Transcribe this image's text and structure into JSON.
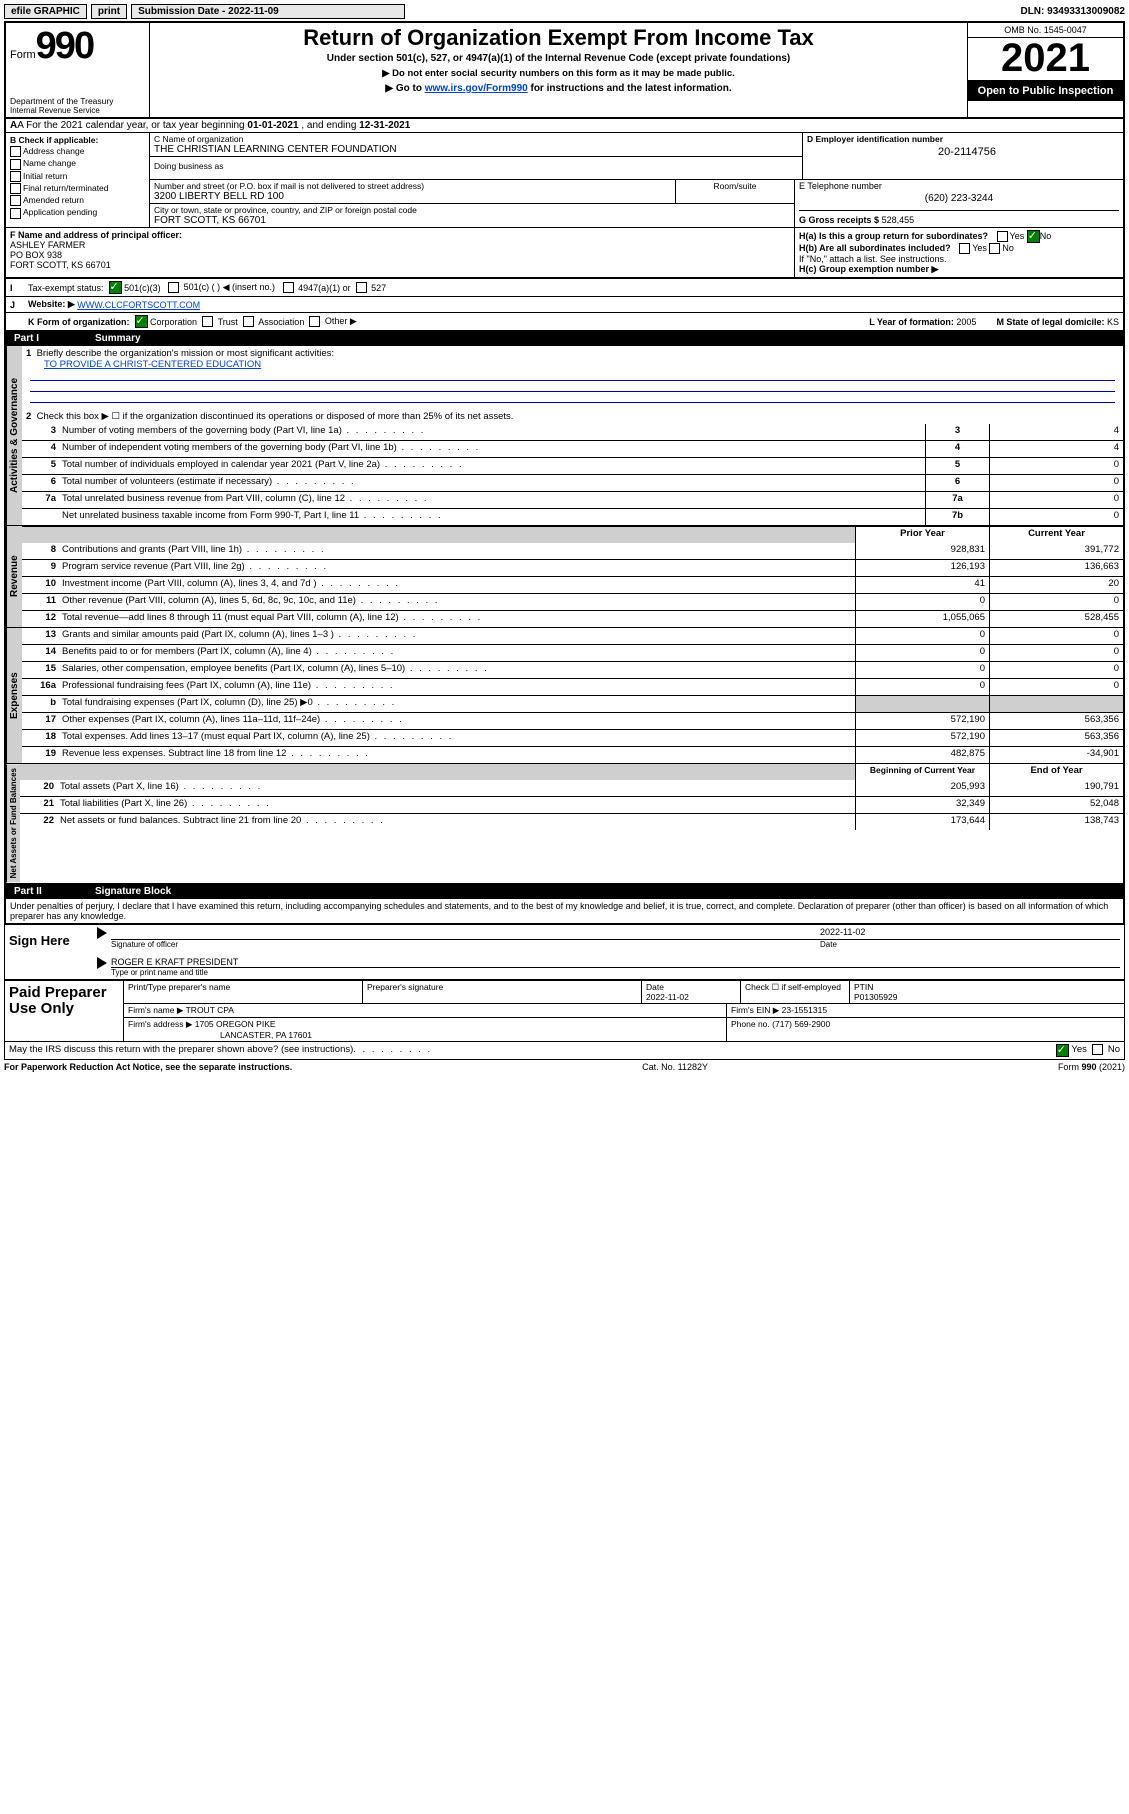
{
  "topbar": {
    "efile": "efile GRAPHIC",
    "print": "print",
    "sub_label": "Submission Date - 2022-11-09",
    "dln": "DLN: 93493313009082"
  },
  "header": {
    "form": "Form",
    "num": "990",
    "dept": "Department of the Treasury",
    "irs": "Internal Revenue Service",
    "title": "Return of Organization Exempt From Income Tax",
    "sub1": "Under section 501(c), 527, or 4947(a)(1) of the Internal Revenue Code (except private foundations)",
    "sub2": "▶ Do not enter social security numbers on this form as it may be made public.",
    "sub3_pre": "▶ Go to ",
    "sub3_link": "www.irs.gov/Form990",
    "sub3_post": " for instructions and the latest information.",
    "omb": "OMB No. 1545-0047",
    "year": "2021",
    "open": "Open to Public Inspection"
  },
  "rowA": {
    "pre": "A For the 2021 calendar year, or tax year beginning ",
    "begin": "01-01-2021",
    "mid": " , and ending ",
    "end": "12-31-2021"
  },
  "B": {
    "title": "B Check if applicable:",
    "opts": [
      "Address change",
      "Name change",
      "Initial return",
      "Final return/terminated",
      "Amended return",
      "Application pending"
    ]
  },
  "C": {
    "name_lbl": "C Name of organization",
    "name": "THE CHRISTIAN LEARNING CENTER FOUNDATION",
    "dba_lbl": "Doing business as",
    "addr_lbl": "Number and street (or P.O. box if mail is not delivered to street address)",
    "room_lbl": "Room/suite",
    "addr": "3200 LIBERTY BELL RD 100",
    "city_lbl": "City or town, state or province, country, and ZIP or foreign postal code",
    "city": "FORT SCOTT, KS  66701"
  },
  "D": {
    "lbl": "D Employer identification number",
    "val": "20-2114756"
  },
  "E": {
    "lbl": "E Telephone number",
    "val": "(620) 223-3244"
  },
  "G": {
    "lbl": "G Gross receipts $",
    "val": "528,455"
  },
  "F": {
    "lbl": "F  Name and address of principal officer:",
    "l1": "ASHLEY FARMER",
    "l2": "PO BOX 938",
    "l3": "FORT SCOTT, KS  66701"
  },
  "H": {
    "a": "H(a)  Is this a group return for subordinates?",
    "b": "H(b)  Are all subordinates included?",
    "note": "If \"No,\" attach a list. See instructions.",
    "c": "H(c)  Group exemption number ▶"
  },
  "I": {
    "lbl": "Tax-exempt status:",
    "o1": "501(c)(3)",
    "o2": "501(c) (  ) ◀ (insert no.)",
    "o3": "4947(a)(1) or",
    "o4": "527"
  },
  "J": {
    "lbl": "Website: ▶",
    "val": "WWW.CLCFORTSCOTT.COM"
  },
  "K": {
    "lbl": "K Form of organization:",
    "o1": "Corporation",
    "o2": "Trust",
    "o3": "Association",
    "o4": "Other ▶"
  },
  "L": {
    "lbl": "L Year of formation:",
    "val": "2005"
  },
  "M": {
    "lbl": "M State of legal domicile:",
    "val": "KS"
  },
  "partI": {
    "num": "Part I",
    "title": "Summary"
  },
  "summary": {
    "l1": "Briefly describe the organization's mission or most significant activities:",
    "mission": "TO PROVIDE A CHRIST-CENTERED EDUCATION",
    "l2": "Check this box ▶ ☐  if the organization discontinued its operations or disposed of more than 25% of its net assets.",
    "rows": [
      {
        "n": "3",
        "t": "Number of voting members of the governing body (Part VI, line 1a)",
        "bn": "3",
        "v": "4"
      },
      {
        "n": "4",
        "t": "Number of independent voting members of the governing body (Part VI, line 1b)",
        "bn": "4",
        "v": "4"
      },
      {
        "n": "5",
        "t": "Total number of individuals employed in calendar year 2021 (Part V, line 2a)",
        "bn": "5",
        "v": "0"
      },
      {
        "n": "6",
        "t": "Total number of volunteers (estimate if necessary)",
        "bn": "6",
        "v": "0"
      },
      {
        "n": "7a",
        "t": "Total unrelated business revenue from Part VIII, column (C), line 12",
        "bn": "7a",
        "v": "0"
      },
      {
        "n": "",
        "t": "Net unrelated business taxable income from Form 990-T, Part I, line 11",
        "bn": "7b",
        "v": "0"
      }
    ],
    "hdr_prior": "Prior Year",
    "hdr_curr": "Current Year",
    "rev": [
      {
        "n": "8",
        "t": "Contributions and grants (Part VIII, line 1h)",
        "p": "928,831",
        "c": "391,772"
      },
      {
        "n": "9",
        "t": "Program service revenue (Part VIII, line 2g)",
        "p": "126,193",
        "c": "136,663"
      },
      {
        "n": "10",
        "t": "Investment income (Part VIII, column (A), lines 3, 4, and 7d )",
        "p": "41",
        "c": "20"
      },
      {
        "n": "11",
        "t": "Other revenue (Part VIII, column (A), lines 5, 6d, 8c, 9c, 10c, and 11e)",
        "p": "0",
        "c": "0"
      },
      {
        "n": "12",
        "t": "Total revenue—add lines 8 through 11 (must equal Part VIII, column (A), line 12)",
        "p": "1,055,065",
        "c": "528,455"
      }
    ],
    "exp": [
      {
        "n": "13",
        "t": "Grants and similar amounts paid (Part IX, column (A), lines 1–3 )",
        "p": "0",
        "c": "0"
      },
      {
        "n": "14",
        "t": "Benefits paid to or for members (Part IX, column (A), line 4)",
        "p": "0",
        "c": "0"
      },
      {
        "n": "15",
        "t": "Salaries, other compensation, employee benefits (Part IX, column (A), lines 5–10)",
        "p": "0",
        "c": "0"
      },
      {
        "n": "16a",
        "t": "Professional fundraising fees (Part IX, column (A), line 11e)",
        "p": "0",
        "c": "0"
      },
      {
        "n": "b",
        "t": "Total fundraising expenses (Part IX, column (D), line 25) ▶0",
        "p": "",
        "c": "",
        "shade": true
      },
      {
        "n": "17",
        "t": "Other expenses (Part IX, column (A), lines 11a–11d, 11f–24e)",
        "p": "572,190",
        "c": "563,356"
      },
      {
        "n": "18",
        "t": "Total expenses. Add lines 13–17 (must equal Part IX, column (A), line 25)",
        "p": "572,190",
        "c": "563,356"
      },
      {
        "n": "19",
        "t": "Revenue less expenses. Subtract line 18 from line 12",
        "p": "482,875",
        "c": "-34,901"
      }
    ],
    "hdr_beg": "Beginning of Current Year",
    "hdr_end": "End of Year",
    "bal": [
      {
        "n": "20",
        "t": "Total assets (Part X, line 16)",
        "p": "205,993",
        "c": "190,791"
      },
      {
        "n": "21",
        "t": "Total liabilities (Part X, line 26)",
        "p": "32,349",
        "c": "52,048"
      },
      {
        "n": "22",
        "t": "Net assets or fund balances. Subtract line 21 from line 20",
        "p": "173,644",
        "c": "138,743"
      }
    ]
  },
  "tabs": {
    "gov": "Activities & Governance",
    "rev": "Revenue",
    "exp": "Expenses",
    "bal": "Net Assets or Fund Balances"
  },
  "partII": {
    "num": "Part II",
    "title": "Signature Block"
  },
  "sig": {
    "decl": "Under penalties of perjury, I declare that I have examined this return, including accompanying schedules and statements, and to the best of my knowledge and belief, it is true, correct, and complete. Declaration of preparer (other than officer) is based on all information of which preparer has any knowledge.",
    "here": "Sign Here",
    "sig_lbl": "Signature of officer",
    "date": "2022-11-02",
    "date_lbl": "Date",
    "name": "ROGER E KRAFT  PRESIDENT",
    "name_lbl": "Type or print name and title"
  },
  "paid": {
    "title": "Paid Preparer Use Only",
    "h1": "Print/Type preparer's name",
    "h2": "Preparer's signature",
    "h3": "Date",
    "h3v": "2022-11-02",
    "h4": "Check ☐ if self-employed",
    "h5": "PTIN",
    "h5v": "P01305929",
    "firm_lbl": "Firm's name   ▶",
    "firm": "TROUT CPA",
    "ein_lbl": "Firm's EIN ▶",
    "ein": "23-1551315",
    "addr_lbl": "Firm's address ▶",
    "addr1": "1705 OREGON PIKE",
    "addr2": "LANCASTER, PA  17601",
    "ph_lbl": "Phone no.",
    "ph": "(717) 569-2900"
  },
  "may": {
    "t": "May the IRS discuss this return with the preparer shown above? (see instructions)",
    "yes": "Yes",
    "no": "No"
  },
  "footer": {
    "l": "For Paperwork Reduction Act Notice, see the separate instructions.",
    "c": "Cat. No. 11282Y",
    "r": "Form 990 (2021)"
  }
}
